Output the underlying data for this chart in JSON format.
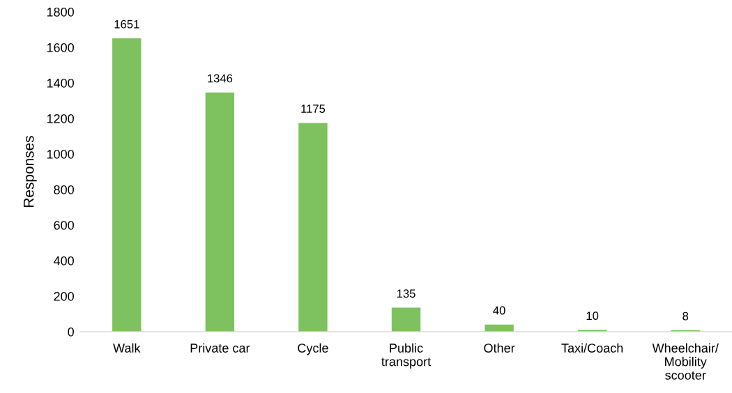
{
  "chart_data": {
    "type": "bar",
    "ylabel": "Responses",
    "categories": [
      "Walk",
      "Private car",
      "Cycle",
      "Public\ntransport",
      "Other",
      "Taxi/Coach",
      "Wheelchair/\nMobility\nscooter"
    ],
    "values": [
      1651,
      1346,
      1175,
      135,
      40,
      10,
      8
    ],
    "color": "#7dc25e",
    "ylim": [
      0,
      1800
    ],
    "yticks": [
      0,
      200,
      400,
      600,
      800,
      1000,
      1200,
      1400,
      1600,
      1800
    ],
    "grid": false,
    "data_labels": true
  }
}
